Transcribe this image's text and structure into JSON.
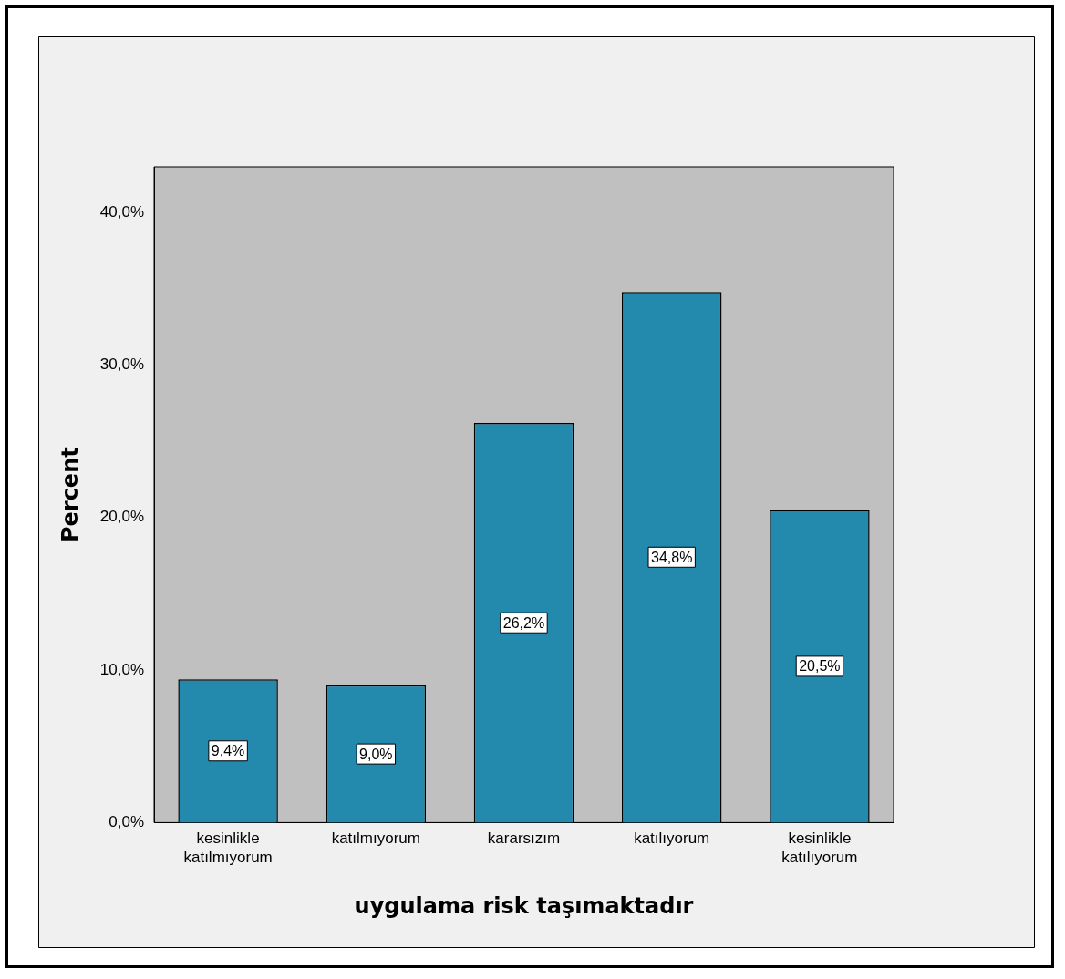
{
  "chart_data": {
    "type": "bar",
    "xlabel": "uygulama risk taşımaktadır",
    "ylabel": "Percent",
    "categories": [
      "kesinlikle katılmıyorum",
      "katılmıyorum",
      "kararsızım",
      "katılıyorum",
      "kesinlikle katılıyorum"
    ],
    "values": [
      9.4,
      9.0,
      26.2,
      34.8,
      20.5
    ],
    "value_labels": [
      "9,4%",
      "9,0%",
      "26,2%",
      "34,8%",
      "20,5%"
    ],
    "color": "#2389ad",
    "ylim": [
      0,
      43
    ],
    "yticks": [
      {
        "value": 0,
        "label": "0,0%"
      },
      {
        "value": 10,
        "label": "10,0%"
      },
      {
        "value": 20,
        "label": "20,0%"
      },
      {
        "value": 30,
        "label": "30,0%"
      },
      {
        "value": 40,
        "label": "40,0%"
      }
    ],
    "grid": false,
    "legend": false
  }
}
